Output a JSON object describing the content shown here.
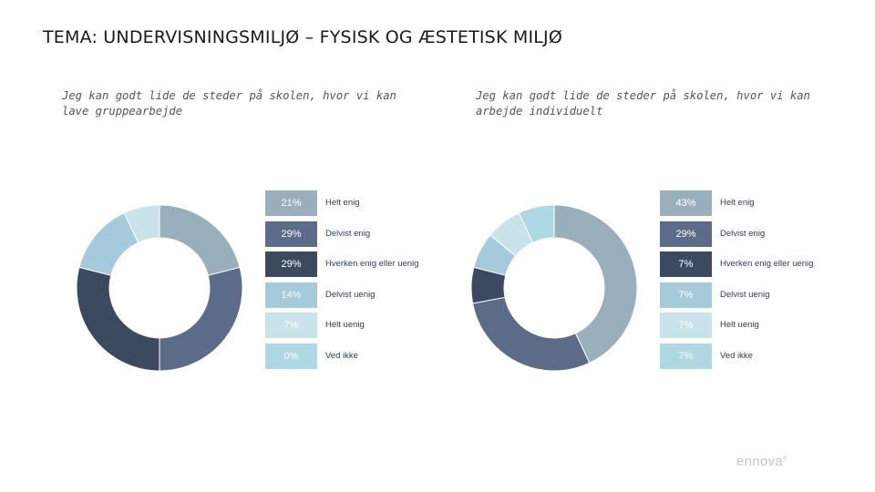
{
  "page": {
    "title": "TEMA: UNDERVISNINGSMILJØ – FYSISK OG ÆSTETISK MILJØ",
    "logo_text": "ennova"
  },
  "chart_data": [
    {
      "type": "pie",
      "variant": "donut",
      "title": "Jeg kan godt lide de steder på skolen, hvor vi kan lave gruppearbejde",
      "categories": [
        "Helt enig",
        "Delvist enig",
        "Hverken enig eller uenig",
        "Delvist uenig",
        "Helt uenig",
        "Ved ikke"
      ],
      "values": [
        21,
        29,
        29,
        14,
        7,
        0
      ],
      "value_labels": [
        "21%",
        "29%",
        "29%",
        "14%",
        "7%",
        "0%"
      ],
      "colors": [
        "#9aafbc",
        "#5c6b88",
        "#3c4a60",
        "#a5cadb",
        "#c8e3ea",
        "#add8e4"
      ],
      "legend": "right"
    },
    {
      "type": "pie",
      "variant": "donut",
      "title": "Jeg kan godt lide de steder på skolen, hvor vi kan arbejde individuelt",
      "categories": [
        "Helt enig",
        "Delvist enig",
        "Hverken enig eller uenig",
        "Delvist uenig",
        "Helt uenig",
        "Ved ikke"
      ],
      "values": [
        43,
        29,
        7,
        7,
        7,
        7
      ],
      "value_labels": [
        "43%",
        "29%",
        "7%",
        "7%",
        "7%",
        "7%"
      ],
      "colors": [
        "#9aafbc",
        "#5c6b88",
        "#3c4a60",
        "#a5cadb",
        "#c8e3ea",
        "#add8e4"
      ],
      "legend": "right"
    }
  ]
}
